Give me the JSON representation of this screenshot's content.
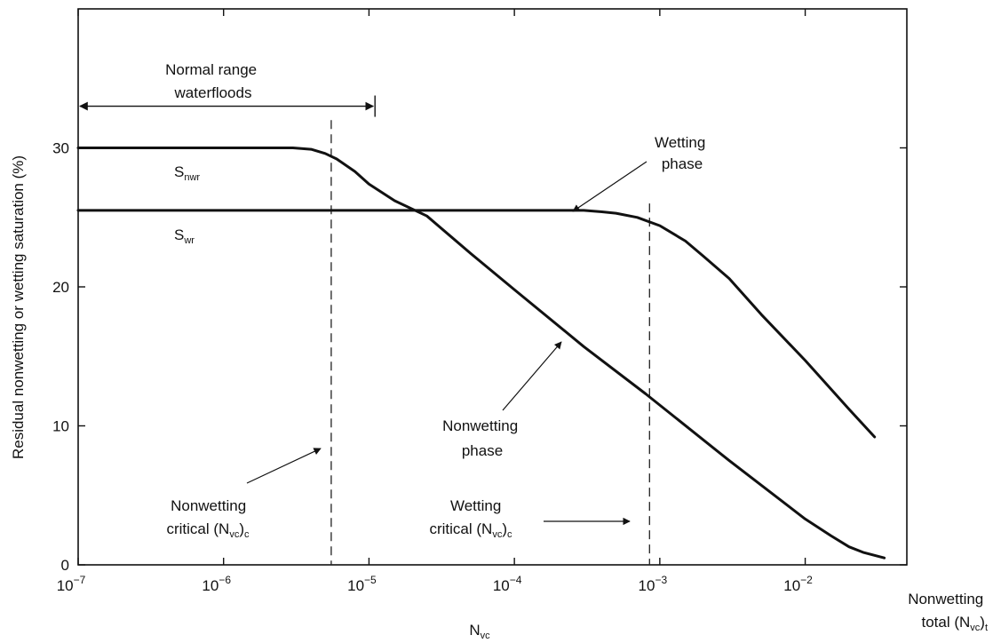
{
  "chart_data": {
    "type": "line",
    "xscale": "log",
    "xlim": [
      1e-07,
      0.05
    ],
    "ylim": [
      0,
      40
    ],
    "grid": false,
    "ylabel": "Residual nonwetting or wetting saturation (%)",
    "xlabel_main": "N",
    "xlabel_sub": "vc",
    "x_ticks": [
      {
        "value": 1e-07,
        "base": "10",
        "exp": "−7"
      },
      {
        "value": 1e-06,
        "base": "10",
        "exp": "−6"
      },
      {
        "value": 1e-05,
        "base": "10",
        "exp": "−5"
      },
      {
        "value": 0.0001,
        "base": "10",
        "exp": "−4"
      },
      {
        "value": 0.001,
        "base": "10",
        "exp": "−3"
      },
      {
        "value": 0.01,
        "base": "10",
        "exp": "−2"
      }
    ],
    "y_ticks": [
      0,
      10,
      20,
      30
    ],
    "series": [
      {
        "name": "Nonwetting phase",
        "points": [
          [
            1e-07,
            30
          ],
          [
            3e-06,
            30
          ],
          [
            4e-06,
            29.9
          ],
          [
            5e-06,
            29.6
          ],
          [
            6e-06,
            29.2
          ],
          [
            8e-06,
            28.3
          ],
          [
            1e-05,
            27.4
          ],
          [
            1.5e-05,
            26.2
          ],
          [
            2.5e-05,
            25.1
          ],
          [
            5e-05,
            22.4
          ],
          [
            0.0001,
            19.8
          ],
          [
            0.0003,
            15.7
          ],
          [
            0.0008,
            12.3
          ],
          [
            0.003,
            7.5
          ],
          [
            0.01,
            3.3
          ],
          [
            0.015,
            2.1
          ],
          [
            0.02,
            1.3
          ],
          [
            0.025,
            0.9
          ],
          [
            0.035,
            0.5
          ]
        ]
      },
      {
        "name": "Wetting phase",
        "points": [
          [
            1e-07,
            25.5
          ],
          [
            0.0003,
            25.5
          ],
          [
            0.0004,
            25.4
          ],
          [
            0.0005,
            25.3
          ],
          [
            0.0007,
            25.0
          ],
          [
            0.001,
            24.4
          ],
          [
            0.0015,
            23.3
          ],
          [
            0.002,
            22.2
          ],
          [
            0.003,
            20.6
          ],
          [
            0.005,
            18.0
          ],
          [
            0.01,
            14.7
          ],
          [
            0.02,
            11.2
          ],
          [
            0.03,
            9.2
          ]
        ]
      }
    ],
    "vlines": [
      {
        "x": 5.5e-06,
        "y_top": 32,
        "style": "dashed"
      },
      {
        "x": 0.00085,
        "y_top": 26,
        "style": "dashed"
      }
    ],
    "range_arrow": {
      "x_start": 1e-07,
      "x_end": 1.1e-05,
      "y": 33
    },
    "annotations": {
      "normal_range": {
        "line1": "Normal range",
        "line2": "waterfloods"
      },
      "snwr": {
        "main": "S",
        "sub": "nwr"
      },
      "swr": {
        "main": "S",
        "sub": "wr"
      },
      "wetting_phase": {
        "line1": "Wetting",
        "line2": "phase"
      },
      "nonwetting_phase": {
        "line1": "Nonwetting",
        "line2": "phase"
      },
      "nonwetting_critical": {
        "line1": "Nonwetting",
        "line2_pre": "critical (N",
        "sub1": "vc",
        "line2_post": ")",
        "sub2": "c"
      },
      "wetting_critical": {
        "line1": "Wetting",
        "line2_pre": "critical (N",
        "sub1": "vc",
        "line2_post": ")",
        "sub2": "c"
      },
      "nonwetting_total": {
        "line1": "Nonwetting",
        "line2_pre": "total (N",
        "sub1": "vc",
        "line2_post": ")",
        "sub2": "t"
      }
    }
  }
}
